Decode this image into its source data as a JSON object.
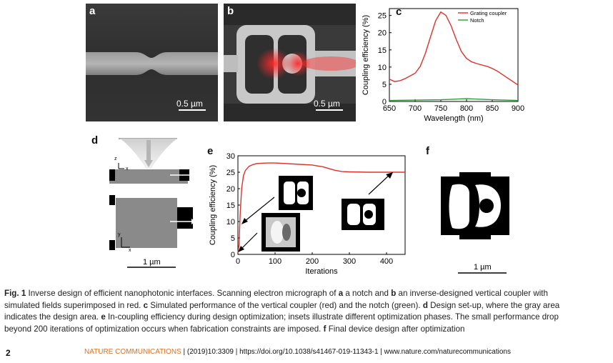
{
  "panels": {
    "a": {
      "letter": "a",
      "scale": "0.5 µm"
    },
    "b": {
      "letter": "b",
      "scale": "0.5 µm"
    },
    "c": {
      "letter": "c"
    },
    "d": {
      "letter": "d",
      "scale": "1 µm",
      "axis_z": "z",
      "axis_x": "x",
      "axis_y": "y"
    },
    "e": {
      "letter": "e"
    },
    "f": {
      "letter": "f",
      "scale": "1 µm"
    }
  },
  "chart_data": [
    {
      "type": "line",
      "panel": "c",
      "xlabel": "Wavelength (nm)",
      "ylabel": "Coupling efficiency (%)",
      "xlim": [
        650,
        900
      ],
      "ylim": [
        0,
        27
      ],
      "xticks": [
        650,
        700,
        750,
        800,
        850,
        900
      ],
      "yticks": [
        0,
        5,
        10,
        15,
        20,
        25
      ],
      "legend_position": "top-right",
      "series": [
        {
          "name": "Grating coupler",
          "color": "#e0302a",
          "x": [
            650,
            660,
            670,
            680,
            690,
            700,
            710,
            720,
            730,
            740,
            750,
            760,
            770,
            780,
            790,
            800,
            810,
            820,
            830,
            840,
            850,
            860,
            870,
            880,
            890,
            900
          ],
          "y": [
            6.5,
            5.8,
            6.0,
            6.6,
            7.4,
            8.2,
            10.2,
            14.0,
            18.8,
            23.5,
            26.0,
            25.0,
            22.0,
            18.0,
            14.5,
            12.5,
            11.5,
            11.0,
            10.6,
            10.2,
            9.6,
            8.8,
            7.8,
            6.8,
            5.8,
            4.8
          ]
        },
        {
          "name": "Notch",
          "color": "#2f9a3a",
          "x": [
            650,
            700,
            750,
            800,
            850,
            900
          ],
          "y": [
            0.3,
            0.4,
            0.5,
            0.8,
            0.5,
            0.3
          ]
        }
      ]
    },
    {
      "type": "line",
      "panel": "e",
      "xlabel": "Iterations",
      "ylabel": "Coupling efficiency (%)",
      "xlim": [
        0,
        450
      ],
      "ylim": [
        0,
        30
      ],
      "xticks": [
        0,
        100,
        200,
        300,
        400
      ],
      "yticks": [
        0,
        5,
        10,
        15,
        20,
        25,
        30
      ],
      "series": [
        {
          "color": "#e0302a",
          "x": [
            0,
            3,
            6,
            10,
            15,
            20,
            30,
            40,
            50,
            60,
            80,
            100,
            150,
            200,
            230,
            260,
            280,
            300,
            350,
            400,
            450
          ],
          "y": [
            0.5,
            3,
            12,
            20,
            24,
            25.5,
            26.8,
            27.3,
            27.6,
            27.7,
            27.8,
            27.8,
            27.5,
            27.2,
            26.6,
            25.6,
            25.2,
            25.1,
            25.0,
            25.0,
            25.0
          ]
        }
      ]
    }
  ],
  "caption": {
    "fig": "Fig. 1",
    "l1_a": " Inverse design of efficient nanophotonic interfaces. Scanning electron micrograph of ",
    "l1_a_bold": "a",
    "l1_b": " a notch and ",
    "l1_b_bold": "b",
    "l1_c": " an inverse-designed vertical coupler with",
    "l2_a": "simulated fields superimposed in red. ",
    "l2_c_bold": "c",
    "l2_b": " Simulated performance of the vertical coupler (red) and the notch (green). ",
    "l2_d_bold": "d",
    "l2_c": " Design set-up, where the gray area",
    "l3_a": "indicates the design area. ",
    "l3_e_bold": "e",
    "l3_b": " In-coupling efficiency during design optimization; insets illustrate different optimization phases. The small performance drop",
    "l4_a": "beyond 200 iterations of optimization occurs when fabrication constraints are imposed. ",
    "l4_f_bold": "f",
    "l4_b": " Final device design after optimization"
  },
  "footer": {
    "page": "2",
    "journal": "NATURE COMMUNICATIONS",
    "rest": " | (2019)10:3309 | https://doi.org/10.1038/s41467-019-11343-1 | www.nature.com/naturecommunications"
  }
}
